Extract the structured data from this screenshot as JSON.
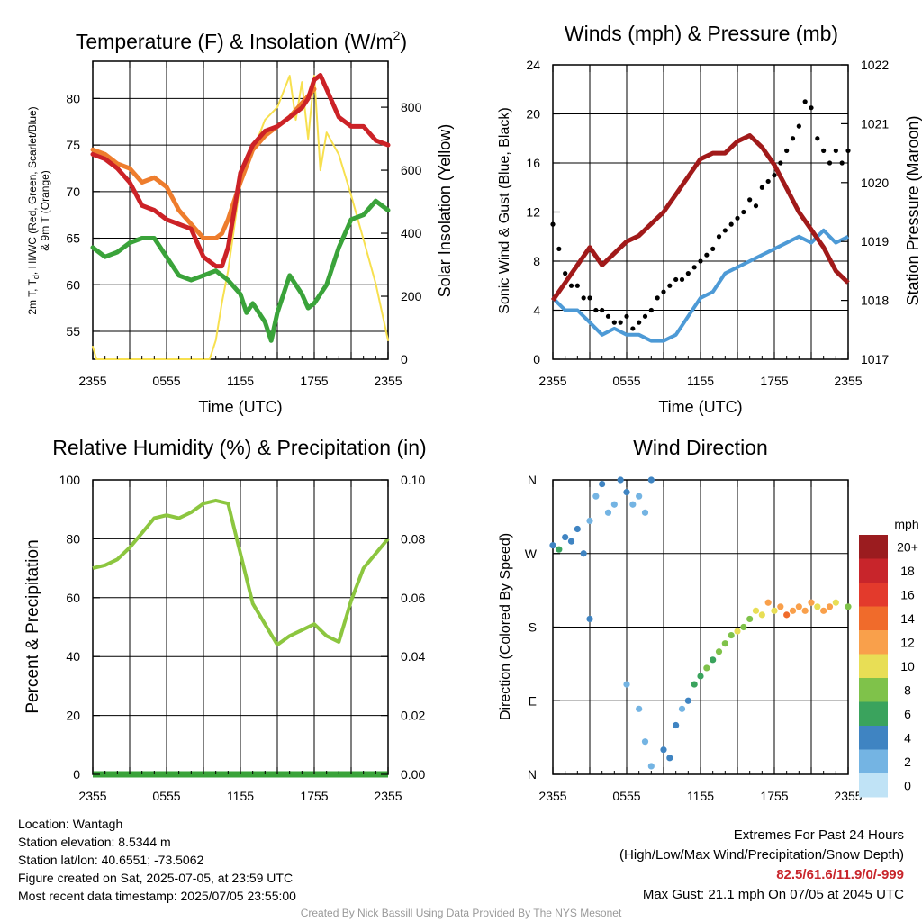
{
  "panels": {
    "temperature": {
      "title": "Temperature (F) & Insolation (W/m",
      "title_superscript": "2",
      "title_end": ")",
      "ylabel_left_line1": "2m T, T",
      "ylabel_left_sub": "d",
      "ylabel_left_line1_end": ", HI/WC (Red, Green, Scarlet/Blue)",
      "ylabel_left_line2": "& 9m T (Orange)",
      "ylabel_right": "Solar Insolation (Yellow)",
      "xlabel": "Time (UTC)"
    },
    "winds": {
      "title": "Winds (mph) & Pressure (mb)",
      "ylabel_left": "Sonic Wind & Gust (Blue, Black)",
      "ylabel_right": "Station Pressure (Maroon)",
      "xlabel": "Time (UTC)"
    },
    "humidity": {
      "title": "Relative Humidity (%) & Precipitation (in)",
      "ylabel_left": "Percent & Precipitation"
    },
    "direction": {
      "title": "Wind Direction",
      "ylabel_left": "Direction (Colored By Speed)",
      "colorbar_unit": "mph",
      "colorbar_labels": [
        "20+",
        "18",
        "16",
        "14",
        "12",
        "10",
        "8",
        "6",
        "4",
        "2",
        "0"
      ]
    }
  },
  "info": {
    "location": "Location: Wantagh",
    "elevation": "Station elevation: 8.5344 m",
    "latlon": "Station lat/lon: 40.6551; -73.5062",
    "created": "Figure created on Sat, 2025-07-05, at 23:59 UTC",
    "recent": "Most recent data timestamp: 2025/07/05 23:55:00",
    "extremes_title": "Extremes For Past 24 Hours",
    "extremes_subtitle": "(High/Low/Max Wind/Precipitation/Snow Depth)",
    "extremes_values": "82.5/61.6/11.9/0/-999",
    "max_gust": "Max Gust: 21.1 mph On 07/05 at 2045 UTC"
  },
  "credit": "Created By Nick Bassill Using Data Provided By The NYS Mesonet",
  "colors": {
    "temp_red": "#cc2227",
    "temp_orange": "#ee7d2d",
    "temp_green": "#3aa33a",
    "insolation_yellow": "#f7e04f",
    "wind_blue": "#4d9ad6",
    "gust_black": "#000000",
    "pressure_maroon": "#a11a1a",
    "rh_green": "#8cc63f",
    "precip_green": "#3aa33a",
    "colorbar": [
      "#9b1c1f",
      "#c8252b",
      "#e33a2c",
      "#f06b2b",
      "#f9a04b",
      "#e8de55",
      "#7fc24a",
      "#3aa35d",
      "#3f84c2",
      "#74b4e3",
      "#c0e3f6"
    ]
  },
  "chart_data": [
    {
      "type": "line",
      "id": "temperature",
      "x_ticks": [
        "2355",
        "0555",
        "1155",
        "1755",
        "2355"
      ],
      "x_range_hours": [
        0,
        24
      ],
      "ylim_left": [
        52,
        84
      ],
      "yticks_left": [
        55,
        60,
        65,
        70,
        75,
        80
      ],
      "ylim_right": [
        0,
        946
      ],
      "yticks_right": [
        0,
        200,
        400,
        600,
        800
      ],
      "series": [
        {
          "name": "2m T",
          "axis": "left",
          "color": "#cc2227",
          "x": [
            0,
            1,
            2,
            3,
            4,
            5,
            6,
            7,
            8,
            9,
            10,
            10.5,
            11,
            11.5,
            12,
            13,
            14,
            15,
            16,
            17,
            17.5,
            18,
            18.5,
            19,
            20,
            21,
            22,
            23,
            24
          ],
          "y": [
            74,
            73.5,
            72.5,
            71,
            68.5,
            68,
            67,
            66.5,
            66,
            63,
            62,
            62,
            64,
            68,
            72,
            75,
            76.5,
            77,
            78,
            79,
            80,
            82,
            82.5,
            81,
            78,
            77,
            77,
            75.5,
            75
          ]
        },
        {
          "name": "9m T",
          "axis": "left",
          "color": "#ee7d2d",
          "x": [
            0,
            1,
            2,
            3,
            4,
            5,
            6,
            7,
            8,
            9,
            10,
            10.5,
            11,
            12,
            13,
            14,
            15,
            16,
            17,
            18
          ],
          "y": [
            74.5,
            74,
            73,
            72.5,
            71,
            71.5,
            70.5,
            68,
            66.5,
            65,
            65,
            65.5,
            67,
            71,
            74.5,
            76,
            77,
            78,
            79.5,
            81
          ]
        },
        {
          "name": "2m Td",
          "axis": "left",
          "color": "#3aa33a",
          "x": [
            0,
            1,
            2,
            3,
            4,
            5,
            6,
            7,
            8,
            9,
            10,
            11,
            12,
            12.5,
            13,
            14,
            14.5,
            15,
            16,
            17,
            17.5,
            18,
            19,
            20,
            21,
            22,
            23,
            24
          ],
          "y": [
            64,
            63,
            63.5,
            64.5,
            65,
            65,
            63,
            61,
            60.5,
            61,
            61.5,
            60.5,
            59,
            57,
            58,
            56,
            54,
            57,
            61,
            59,
            57.5,
            58,
            60,
            64,
            67,
            67.5,
            69,
            68
          ]
        },
        {
          "name": "Solar Insolation",
          "axis": "right",
          "color": "#f7e04f",
          "x": [
            0,
            0.3,
            1,
            2,
            3,
            4,
            5,
            6,
            7,
            8,
            9,
            9.5,
            10,
            10.5,
            11,
            11.5,
            12,
            13,
            14,
            15,
            16,
            16.5,
            17,
            17.5,
            18,
            18.5,
            19,
            20,
            21,
            22,
            23,
            24
          ],
          "y": [
            40,
            0,
            0,
            0,
            0,
            0,
            0,
            0,
            0,
            0,
            0,
            0,
            60,
            180,
            280,
            420,
            560,
            660,
            760,
            800,
            900,
            760,
            880,
            700,
            900,
            600,
            720,
            650,
            520,
            380,
            240,
            60
          ]
        }
      ]
    },
    {
      "type": "line",
      "id": "winds",
      "x_ticks": [
        "2355",
        "0555",
        "1155",
        "1755",
        "2355"
      ],
      "x_range_hours": [
        0,
        24
      ],
      "ylim_left": [
        0,
        24
      ],
      "yticks_left": [
        0,
        4,
        8,
        12,
        16,
        20,
        24
      ],
      "ylim_right": [
        1017,
        1022
      ],
      "yticks_right": [
        1017,
        1018,
        1019,
        1020,
        1021,
        1022
      ],
      "series": [
        {
          "name": "Sonic Wind",
          "axis": "left",
          "color": "#4d9ad6",
          "x": [
            0,
            1,
            2,
            3,
            4,
            5,
            6,
            7,
            8,
            9,
            10,
            11,
            12,
            13,
            14,
            15,
            16,
            17,
            18,
            19,
            20,
            21,
            22,
            23,
            24
          ],
          "y": [
            5,
            4,
            4,
            3,
            2,
            2.5,
            2,
            2,
            1.5,
            1.5,
            2,
            3.5,
            5,
            5.5,
            7,
            7.5,
            8,
            8.5,
            9,
            9.5,
            10,
            9.5,
            10.5,
            9.5,
            10
          ]
        },
        {
          "name": "Gust",
          "axis": "left",
          "color": "#000000",
          "style": "points",
          "x": [
            0,
            0.5,
            1,
            1.5,
            2,
            2.5,
            3,
            3.5,
            4,
            4.5,
            5,
            5.5,
            6,
            6.5,
            7,
            7.5,
            8,
            8.5,
            9,
            9.5,
            10,
            10.5,
            11,
            11.5,
            12,
            12.5,
            13,
            13.5,
            14,
            14.5,
            15,
            15.5,
            16,
            16.5,
            17,
            17.5,
            18,
            18.5,
            19,
            19.5,
            20,
            20.5,
            21,
            21.5,
            22,
            22.5,
            23,
            23.5,
            24
          ],
          "y": [
            11,
            9,
            7,
            6,
            6,
            5,
            5,
            4,
            4,
            3.5,
            3,
            3,
            3.5,
            2.5,
            3,
            3.5,
            4,
            5,
            5.5,
            6,
            6.5,
            6.5,
            7,
            7.5,
            8,
            8.5,
            9,
            10,
            10.5,
            11,
            11.5,
            12,
            13,
            12.5,
            14,
            14.5,
            15,
            16,
            17,
            18,
            19,
            21,
            20.5,
            18,
            17,
            16,
            17,
            16,
            17
          ]
        },
        {
          "name": "Station Pressure",
          "axis": "right",
          "color": "#a11a1a",
          "x": [
            0,
            1,
            2,
            3,
            4,
            5,
            6,
            7,
            8,
            9,
            10,
            11,
            12,
            13,
            14,
            15,
            16,
            17,
            18,
            19,
            20,
            21,
            22,
            23,
            24
          ],
          "y": [
            1018,
            1018.3,
            1018.6,
            1018.9,
            1018.6,
            1018.8,
            1019,
            1019.1,
            1019.3,
            1019.5,
            1019.8,
            1020.1,
            1020.4,
            1020.5,
            1020.5,
            1020.7,
            1020.8,
            1020.6,
            1020.3,
            1019.9,
            1019.5,
            1019.2,
            1018.9,
            1018.5,
            1018.3
          ]
        }
      ]
    },
    {
      "type": "line",
      "id": "humidity",
      "x_ticks": [
        "2355",
        "0555",
        "1155",
        "1755",
        "2355"
      ],
      "x_range_hours": [
        0,
        24
      ],
      "ylim_left": [
        0,
        100
      ],
      "yticks_left": [
        0,
        20,
        40,
        60,
        80,
        100
      ],
      "ylim_right": [
        0,
        0.1
      ],
      "yticks_right": [
        "0.00",
        "0.02",
        "0.04",
        "0.06",
        "0.08",
        "0.10"
      ],
      "series": [
        {
          "name": "Relative Humidity",
          "axis": "left",
          "color": "#8cc63f",
          "x": [
            0,
            1,
            2,
            3,
            4,
            5,
            6,
            7,
            8,
            9,
            10,
            11,
            12,
            13,
            14,
            15,
            16,
            17,
            18,
            19,
            20,
            21,
            22,
            23,
            24
          ],
          "y": [
            70,
            71,
            73,
            77,
            82,
            87,
            88,
            87,
            89,
            92,
            93,
            92,
            75,
            58,
            51,
            44,
            47,
            49,
            51,
            47,
            45,
            59,
            70,
            75,
            80
          ]
        },
        {
          "name": "Precipitation",
          "axis": "right",
          "color": "#3aa33a",
          "x": [
            0,
            24
          ],
          "y": [
            0,
            0
          ]
        }
      ]
    },
    {
      "type": "scatter",
      "id": "direction",
      "x_ticks": [
        "2355",
        "0555",
        "1155",
        "1755",
        "2355"
      ],
      "x_range_hours": [
        0,
        24
      ],
      "yticks_left": [
        "N",
        "E",
        "S",
        "W",
        "N"
      ],
      "ylim_deg": [
        0,
        360
      ],
      "points": [
        [
          0,
          280,
          4
        ],
        [
          0.5,
          275,
          5
        ],
        [
          1,
          290,
          4
        ],
        [
          1.5,
          285,
          3
        ],
        [
          2,
          300,
          4
        ],
        [
          2.5,
          270,
          3
        ],
        [
          3,
          310,
          2
        ],
        [
          3.5,
          340,
          2
        ],
        [
          4,
          355,
          3
        ],
        [
          4.5,
          320,
          2
        ],
        [
          5,
          330,
          1
        ],
        [
          5.5,
          360,
          3
        ],
        [
          6,
          345,
          4
        ],
        [
          6.5,
          330,
          2
        ],
        [
          7,
          340,
          1
        ],
        [
          7.5,
          320,
          1
        ],
        [
          8,
          360,
          4
        ],
        [
          3,
          190,
          4
        ],
        [
          6,
          110,
          1
        ],
        [
          7,
          80,
          2
        ],
        [
          7.5,
          40,
          1
        ],
        [
          8,
          10,
          2
        ],
        [
          9,
          30,
          3
        ],
        [
          9.5,
          20,
          4
        ],
        [
          10,
          60,
          3
        ],
        [
          10.5,
          80,
          2
        ],
        [
          11,
          90,
          4
        ],
        [
          11.5,
          110,
          5
        ],
        [
          12,
          120,
          6
        ],
        [
          12.5,
          130,
          7
        ],
        [
          13,
          140,
          6
        ],
        [
          13.5,
          150,
          8
        ],
        [
          14,
          160,
          7
        ],
        [
          14.5,
          170,
          8
        ],
        [
          15,
          175,
          9
        ],
        [
          15.5,
          180,
          7
        ],
        [
          16,
          190,
          8
        ],
        [
          16.5,
          200,
          10
        ],
        [
          17,
          195,
          9
        ],
        [
          17.5,
          210,
          12
        ],
        [
          18,
          200,
          10
        ],
        [
          18.5,
          205,
          11
        ],
        [
          19,
          195,
          13
        ],
        [
          19.5,
          200,
          12
        ],
        [
          20,
          205,
          11
        ],
        [
          20.5,
          200,
          12
        ],
        [
          21,
          210,
          11
        ],
        [
          21.5,
          205,
          10
        ],
        [
          22,
          200,
          12
        ],
        [
          22.5,
          205,
          11
        ],
        [
          23,
          210,
          9
        ],
        [
          24,
          205,
          8
        ]
      ]
    }
  ]
}
